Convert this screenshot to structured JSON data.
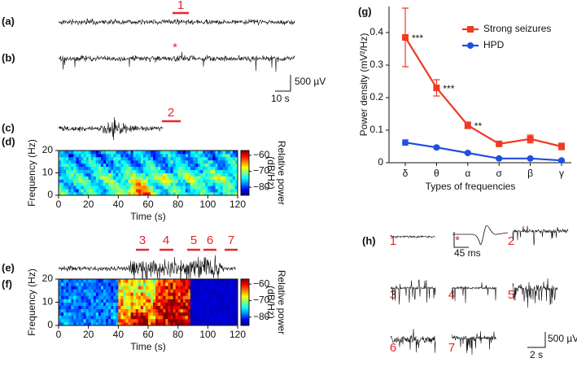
{
  "panel_labels": [
    "(a)",
    "(b)",
    "(c)",
    "(d)",
    "(e)",
    "(f)",
    "(g)",
    "(h)"
  ],
  "markers": {
    "a": "1",
    "b": "*",
    "c": "2",
    "e": [
      "3",
      "4",
      "5",
      "6",
      "7"
    ]
  },
  "scale_bars": {
    "amplitude": "500 µV",
    "time": "10 s"
  },
  "spectrograms": [
    {
      "ylabel": "Frequency (Hz)",
      "xlabel": "Time (s)",
      "xlim": [
        0,
        120
      ],
      "ylim": [
        0,
        20
      ],
      "xticks": [
        0,
        20,
        40,
        60,
        80,
        100,
        120
      ],
      "yticks": [
        0,
        10,
        20
      ],
      "colorbar_label": [
        "Relative power",
        "(dB/Hz)"
      ],
      "colorbar_ticks": [
        {
          "value": -60,
          "label": "−60"
        },
        {
          "value": -70,
          "label": "−70"
        },
        {
          "value": -80,
          "label": "−80"
        }
      ],
      "colorbar_lim": [
        -85,
        -57
      ]
    },
    {
      "ylabel": "Frequency (Hz)",
      "xlabel": "Time (s)",
      "xlim": [
        0,
        120
      ],
      "ylim": [
        0,
        20
      ],
      "xticks": [
        0,
        20,
        40,
        60,
        80,
        100,
        120
      ],
      "yticks": [
        0,
        10,
        20
      ],
      "colorbar_label": [
        "Relative power",
        "(dB/Hz)"
      ],
      "colorbar_ticks": [
        {
          "value": -60,
          "label": "−60"
        },
        {
          "value": -70,
          "label": "−70"
        },
        {
          "value": -80,
          "label": "−80"
        }
      ],
      "colorbar_lim": [
        -85,
        -57
      ]
    }
  ],
  "snippets": {
    "labels": [
      "1",
      "*",
      "2",
      "3",
      "4",
      "5",
      "6",
      "7"
    ],
    "star_time": "45 ms",
    "amplitude": "500 µV",
    "time": "2 s"
  },
  "chart_data": {
    "type": "line",
    "xlabel": "Types of frequencies",
    "ylabel": "Power density (mV²/Hz)",
    "categories": [
      "δ",
      "θ",
      "α",
      "σ",
      "β",
      "γ"
    ],
    "ylim": [
      0,
      0.48
    ],
    "yticks": [
      0.0,
      0.1,
      0.2,
      0.3,
      0.4
    ],
    "legend": "upper right",
    "series": [
      {
        "name": "Strong seizures",
        "color": "#f03a24",
        "marker": "square",
        "values": [
          0.385,
          0.23,
          0.115,
          0.058,
          0.073,
          0.05
        ],
        "errors": [
          0.09,
          0.025,
          0.01,
          0.005,
          0.012,
          0.01
        ],
        "annotations": [
          "***",
          "***",
          "**",
          null,
          null,
          null
        ]
      },
      {
        "name": "HPD",
        "color": "#1f4fe0",
        "marker": "circle",
        "values": [
          0.062,
          0.047,
          0.03,
          0.013,
          0.013,
          0.007
        ],
        "errors": [
          0.008,
          0.004,
          0.003,
          0.002,
          0.002,
          0.002
        ]
      }
    ]
  }
}
